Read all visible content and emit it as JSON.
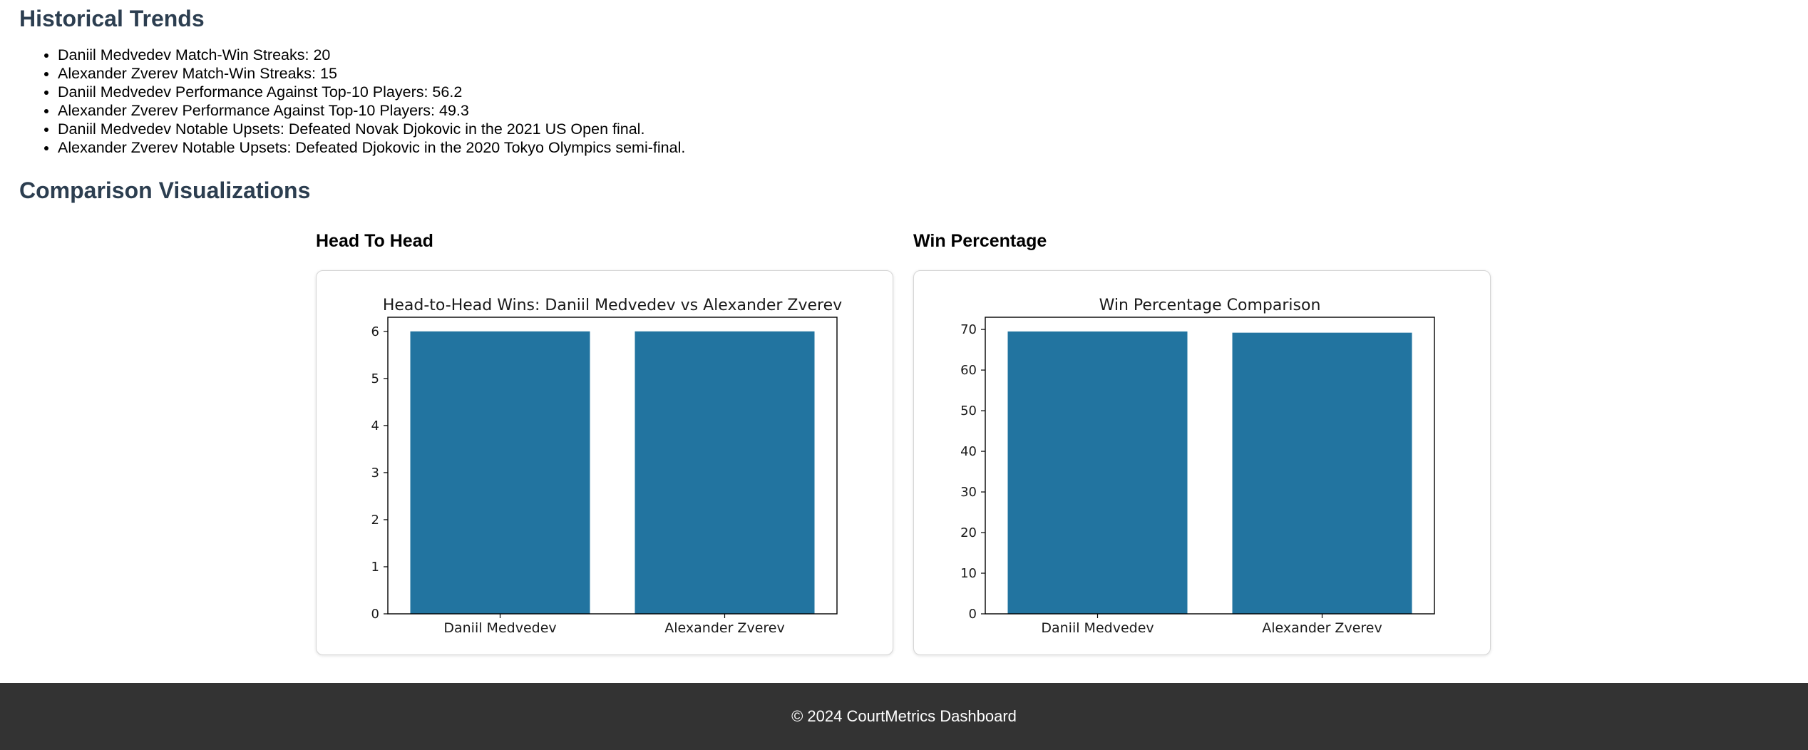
{
  "historical_trends": {
    "title": "Historical Trends",
    "items": [
      "Daniil Medvedev Match-Win Streaks: 20",
      "Alexander Zverev Match-Win Streaks: 15",
      "Daniil Medvedev Performance Against Top-10 Players: 56.2",
      "Alexander Zverev Performance Against Top-10 Players: 49.3",
      "Daniil Medvedev Notable Upsets: Defeated Novak Djokovic in the 2021 US Open final.",
      "Alexander Zverev Notable Upsets: Defeated Djokovic in the 2020 Tokyo Olympics semi-final."
    ]
  },
  "comparison": {
    "title": "Comparison Visualizations",
    "head_to_head_heading": "Head To Head",
    "win_percentage_heading": "Win Percentage"
  },
  "chart_data": [
    {
      "type": "bar",
      "title": "Head-to-Head Wins: Daniil Medvedev vs Alexander Zverev",
      "categories": [
        "Daniil Medvedev",
        "Alexander Zverev"
      ],
      "values": [
        6,
        6
      ],
      "ylim": [
        0,
        6.3
      ],
      "yticks": [
        0,
        1,
        2,
        3,
        4,
        5,
        6
      ],
      "xlabel": "",
      "ylabel": "",
      "color": "#2274a0",
      "grid": false
    },
    {
      "type": "bar",
      "title": "Win Percentage Comparison",
      "categories": [
        "Daniil Medvedev",
        "Alexander Zverev"
      ],
      "values": [
        69.5,
        69.2
      ],
      "ylim": [
        0,
        73
      ],
      "yticks": [
        0,
        10,
        20,
        30,
        40,
        50,
        60,
        70
      ],
      "xlabel": "",
      "ylabel": "",
      "color": "#2274a0",
      "grid": false
    }
  ],
  "footer": {
    "text": "© 2024 CourtMetrics Dashboard"
  }
}
